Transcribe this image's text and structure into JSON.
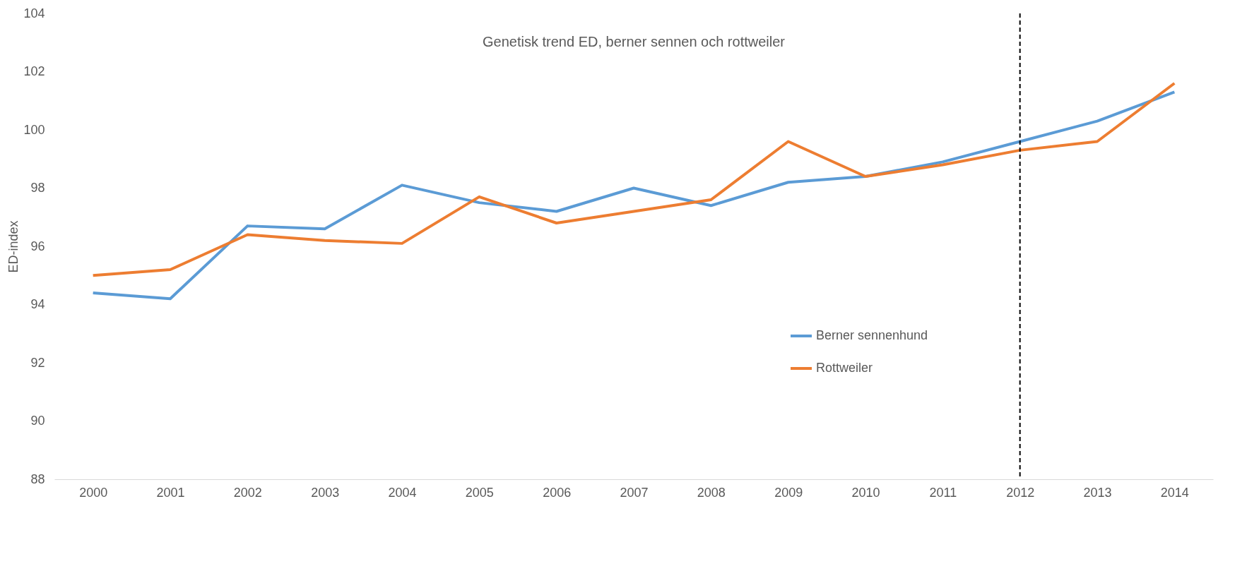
{
  "chart_data": {
    "type": "line",
    "title": "Genetisk trend ED, berner sennen och rottweiler",
    "ylabel": "ED-index",
    "categories": [
      "2000",
      "2001",
      "2002",
      "2003",
      "2004",
      "2005",
      "2006",
      "2007",
      "2008",
      "2009",
      "2010",
      "2011",
      "2012",
      "2013",
      "2014"
    ],
    "series": [
      {
        "name": "Berner sennenhund",
        "color": "#5b9bd5",
        "values": [
          94.4,
          94.2,
          96.7,
          96.6,
          98.1,
          97.5,
          97.2,
          98.0,
          97.4,
          98.2,
          98.4,
          98.9,
          99.6,
          100.3,
          101.3
        ]
      },
      {
        "name": "Rottweiler",
        "color": "#ed7d31",
        "values": [
          95.0,
          95.2,
          96.4,
          96.2,
          96.1,
          97.7,
          96.8,
          97.2,
          97.6,
          99.6,
          98.4,
          98.8,
          99.3,
          99.6,
          101.6
        ]
      }
    ],
    "ylim": [
      88,
      104
    ],
    "yticks": [
      88,
      90,
      92,
      94,
      96,
      98,
      100,
      102,
      104
    ],
    "grid": false,
    "legend": "right",
    "ref_lines": [
      {
        "axis": "x",
        "value": "2012",
        "color": "#000000",
        "line_style": "dashed"
      }
    ]
  }
}
